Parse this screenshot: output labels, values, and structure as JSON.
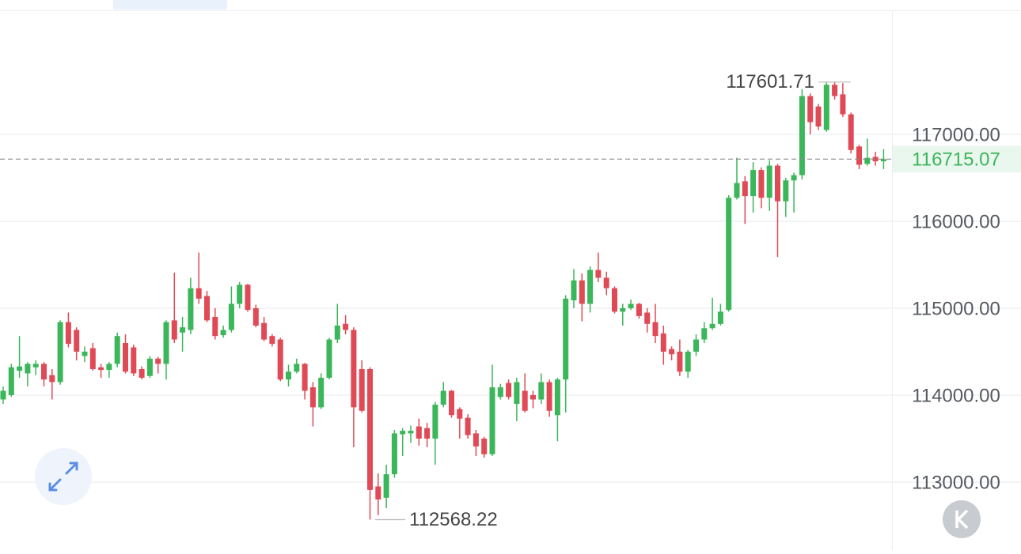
{
  "chart_data": {
    "type": "candlestick",
    "ylim": [
      112318,
      118418
    ],
    "yticks": [
      {
        "value": 113000,
        "label": "113000.00"
      },
      {
        "value": 114000,
        "label": "114000.00"
      },
      {
        "value": 115000,
        "label": "115000.00"
      },
      {
        "value": 116000,
        "label": "116000.00"
      },
      {
        "value": 117000,
        "label": "117000.00"
      }
    ],
    "grid": true,
    "up_color": "#3cb65a",
    "down_color": "#e04a56",
    "high_annotation": 117601.71,
    "low_annotation": 112568.22,
    "last_price": 116715.07,
    "ohlc": [
      [
        113950,
        114100,
        113900,
        114050
      ],
      [
        114000,
        114360,
        113980,
        114320
      ],
      [
        114280,
        114680,
        114200,
        114330
      ],
      [
        114250,
        114380,
        114100,
        114360
      ],
      [
        114320,
        114400,
        114230,
        114360
      ],
      [
        114360,
        114380,
        114100,
        114180
      ],
      [
        114230,
        114300,
        113950,
        114150
      ],
      [
        114150,
        114860,
        114120,
        114840
      ],
      [
        114840,
        114950,
        114550,
        114590
      ],
      [
        114750,
        114780,
        114400,
        114500
      ],
      [
        114450,
        114560,
        114380,
        114500
      ],
      [
        114540,
        114600,
        114280,
        114300
      ],
      [
        114320,
        114360,
        114200,
        114290
      ],
      [
        114290,
        114380,
        114200,
        114360
      ],
      [
        114360,
        114720,
        114320,
        114680
      ],
      [
        114600,
        114700,
        114250,
        114270
      ],
      [
        114550,
        114580,
        114220,
        114250
      ],
      [
        114300,
        114330,
        114180,
        114200
      ],
      [
        114220,
        114450,
        114200,
        114420
      ],
      [
        114420,
        114440,
        114250,
        114360
      ],
      [
        114360,
        114860,
        114180,
        114840
      ],
      [
        114860,
        115410,
        114600,
        114640
      ],
      [
        114720,
        114900,
        114500,
        114780
      ],
      [
        114750,
        115350,
        114700,
        115230
      ],
      [
        115230,
        115640,
        115050,
        115110
      ],
      [
        115140,
        115200,
        114840,
        114860
      ],
      [
        114900,
        115000,
        114640,
        114680
      ],
      [
        114690,
        114800,
        114660,
        114750
      ],
      [
        114750,
        115250,
        114720,
        115050
      ],
      [
        115050,
        115300,
        115000,
        115270
      ],
      [
        115270,
        115280,
        114960,
        114980
      ],
      [
        115000,
        115040,
        114780,
        114800
      ],
      [
        114830,
        114900,
        114620,
        114640
      ],
      [
        114680,
        114700,
        114560,
        114590
      ],
      [
        114640,
        114660,
        114160,
        114180
      ],
      [
        114180,
        114350,
        114100,
        114270
      ],
      [
        114270,
        114420,
        114250,
        114360
      ],
      [
        114360,
        114370,
        113950,
        114050
      ],
      [
        114090,
        114150,
        113640,
        113860
      ],
      [
        113860,
        114250,
        113840,
        114200
      ],
      [
        114200,
        114660,
        114180,
        114640
      ],
      [
        114640,
        115050,
        114600,
        114800
      ],
      [
        114820,
        114920,
        114700,
        114750
      ],
      [
        114750,
        114780,
        113400,
        113860
      ],
      [
        114300,
        114400,
        113800,
        113820
      ],
      [
        114300,
        114320,
        112568.22,
        112910
      ],
      [
        112950,
        113100,
        112620,
        112800
      ],
      [
        112820,
        113200,
        112700,
        113090
      ],
      [
        113090,
        113600,
        113050,
        113560
      ],
      [
        113550,
        113620,
        113300,
        113590
      ],
      [
        113560,
        113650,
        113450,
        113590
      ],
      [
        113640,
        113730,
        113420,
        113500
      ],
      [
        113620,
        113680,
        113400,
        113500
      ],
      [
        113500,
        113920,
        113200,
        113890
      ],
      [
        113890,
        114150,
        113860,
        114050
      ],
      [
        114050,
        114060,
        113740,
        113770
      ],
      [
        113840,
        113860,
        113500,
        113730
      ],
      [
        113740,
        113780,
        113500,
        113540
      ],
      [
        113560,
        113600,
        113300,
        113410
      ],
      [
        113500,
        113520,
        113280,
        113320
      ],
      [
        113320,
        114350,
        113300,
        114090
      ],
      [
        113980,
        114130,
        113950,
        114090
      ],
      [
        114140,
        114180,
        113950,
        113980
      ],
      [
        113900,
        114200,
        113700,
        114150
      ],
      [
        114050,
        114250,
        113800,
        113820
      ],
      [
        114000,
        114050,
        113850,
        113950
      ],
      [
        113950,
        114250,
        113900,
        114150
      ],
      [
        114150,
        114180,
        113750,
        113820
      ],
      [
        113770,
        114200,
        113470,
        114180
      ],
      [
        114180,
        115150,
        113800,
        115110
      ],
      [
        115090,
        115450,
        115000,
        115320
      ],
      [
        115320,
        115400,
        114850,
        115050
      ],
      [
        115050,
        115480,
        114950,
        115440
      ],
      [
        115440,
        115640,
        115300,
        115350
      ],
      [
        115350,
        115420,
        115150,
        115230
      ],
      [
        115230,
        115250,
        114940,
        114960
      ],
      [
        114960,
        115050,
        114800,
        115000
      ],
      [
        115000,
        115100,
        114980,
        115050
      ],
      [
        115050,
        115060,
        114880,
        114910
      ],
      [
        114950,
        115000,
        114720,
        114820
      ],
      [
        114840,
        115050,
        114600,
        114680
      ],
      [
        114710,
        114800,
        114350,
        114500
      ],
      [
        114530,
        114560,
        114400,
        114470
      ],
      [
        114500,
        114640,
        114220,
        114270
      ],
      [
        114270,
        114520,
        114200,
        114500
      ],
      [
        114500,
        114700,
        114450,
        114640
      ],
      [
        114640,
        114840,
        114600,
        114770
      ],
      [
        114770,
        115120,
        114750,
        114820
      ],
      [
        114820,
        115050,
        114800,
        114960
      ],
      [
        114980,
        116300,
        114960,
        116270
      ],
      [
        116270,
        116730,
        116250,
        116440
      ],
      [
        116460,
        116520,
        115970,
        116290
      ],
      [
        116290,
        116680,
        116100,
        116590
      ],
      [
        116590,
        116620,
        116150,
        116270
      ],
      [
        116270,
        116700,
        116120,
        116640
      ],
      [
        116640,
        116660,
        115590,
        116230
      ],
      [
        116230,
        116500,
        116050,
        116470
      ],
      [
        116470,
        116560,
        116100,
        116530
      ],
      [
        116530,
        117520,
        116480,
        117440
      ],
      [
        117440,
        117470,
        117000,
        117140
      ],
      [
        117320,
        117350,
        117050,
        117090
      ],
      [
        117050,
        117600,
        117030,
        117570
      ],
      [
        117570,
        117601.71,
        117400,
        117440
      ],
      [
        117460,
        117590,
        117200,
        117230
      ],
      [
        117230,
        117250,
        116780,
        116820
      ],
      [
        116860,
        116880,
        116600,
        116650
      ],
      [
        116660,
        116950,
        116640,
        116730
      ],
      [
        116740,
        116800,
        116640,
        116690
      ],
      [
        116690,
        116830,
        116600,
        116715.07
      ]
    ]
  }
}
